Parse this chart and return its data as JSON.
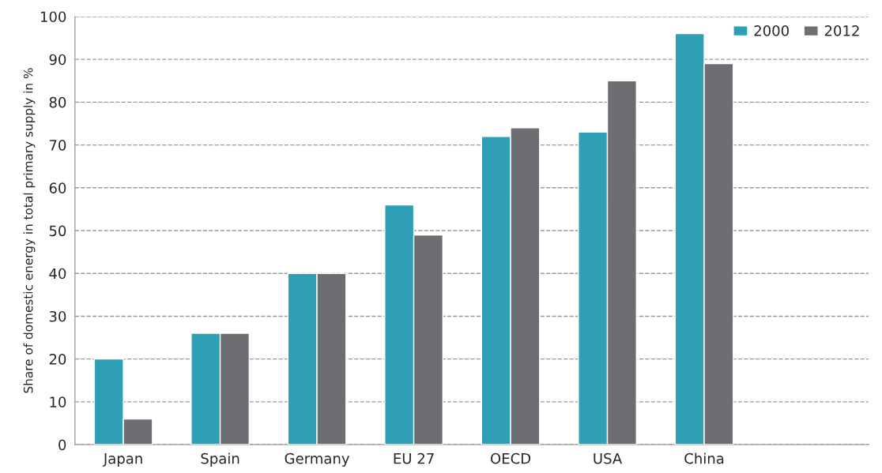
{
  "chart_data": {
    "type": "bar",
    "ylabel": "Share of domestic energy in total primary supply in %",
    "categories": [
      "Japan",
      "Spain",
      "Germany",
      "EU 27",
      "OECD",
      "USA",
      "China"
    ],
    "series": [
      {
        "name": "2000",
        "color": "#2e9fb4",
        "values": [
          20,
          26,
          40,
          56,
          72,
          73,
          96
        ]
      },
      {
        "name": "2012",
        "color": "#6d6e71",
        "values": [
          6,
          26,
          40,
          49,
          74,
          85,
          89
        ]
      }
    ],
    "ylim": [
      0,
      100
    ],
    "yticks": [
      0,
      10,
      20,
      30,
      40,
      50,
      60,
      70,
      80,
      90,
      100
    ],
    "grid": "y",
    "legend": "top right"
  }
}
